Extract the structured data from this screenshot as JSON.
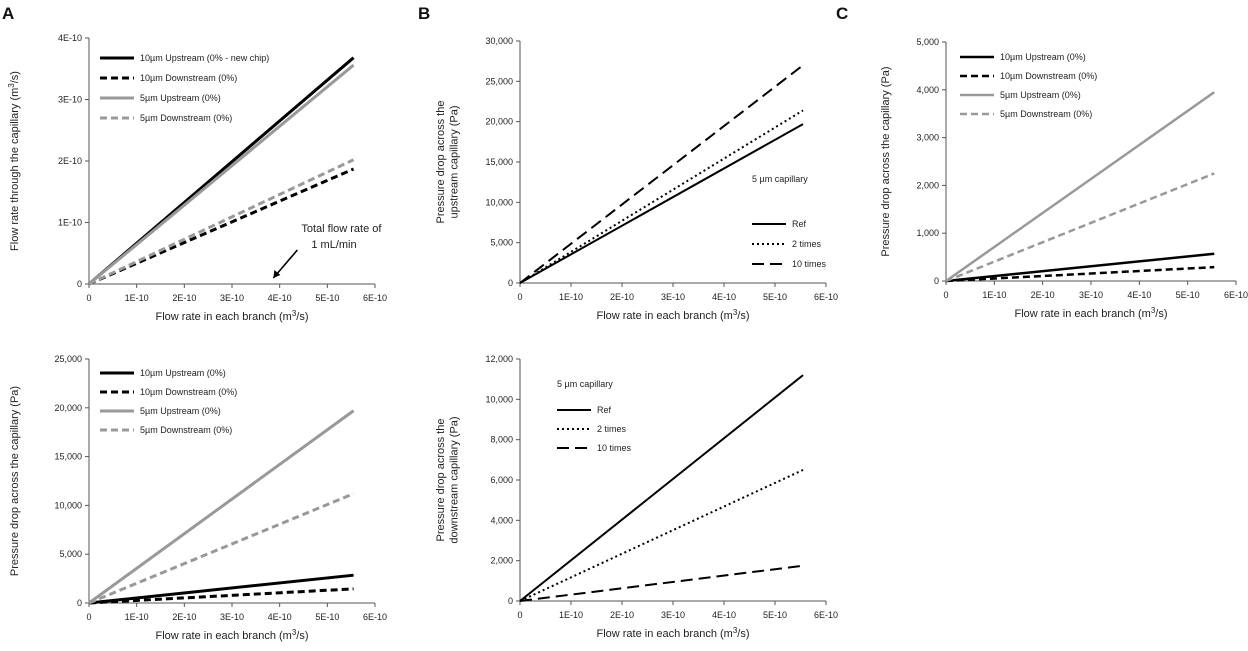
{
  "panel_labels": [
    "A",
    "B",
    "C"
  ],
  "colors": {
    "black": "#000000",
    "gray": "#999999",
    "axis": "#555555",
    "text": "#222222"
  },
  "chart_data": [
    {
      "id": "A-top",
      "type": "line",
      "panel": "A",
      "title": "",
      "xlabel": "Flow rate in each branch (m³/s)",
      "ylabel": "Flow rate through the capillary (m³/s)",
      "xlim": [
        0,
        6e-10
      ],
      "ylim": [
        0,
        4e-10
      ],
      "xticks": [
        0,
        1e-10,
        2e-10,
        3e-10,
        4e-10,
        5e-10,
        6e-10
      ],
      "xtick_labels": [
        "0",
        "1E-10",
        "2E-10",
        "3E-10",
        "4E-10",
        "5E-10",
        "6E-10"
      ],
      "yticks": [
        0,
        1e-10,
        2e-10,
        3e-10,
        4e-10
      ],
      "ytick_labels": [
        "0",
        "1E-10",
        "2E-10",
        "3E-10",
        "4E-10"
      ],
      "legend_position": "top-left",
      "series": [
        {
          "name": "10µm Upstream  (0% - new chip)",
          "style": "solid",
          "color": "#000000",
          "x": [
            0,
            5.55e-10
          ],
          "y": [
            0,
            3.68e-10
          ]
        },
        {
          "name": "10µm Downstream  (0%)",
          "style": "dashed",
          "color": "#000000",
          "x": [
            0,
            5.55e-10
          ],
          "y": [
            0,
            1.87e-10
          ]
        },
        {
          "name": "5µm Upstream  (0%)",
          "style": "solid",
          "color": "#999999",
          "x": [
            0,
            5.55e-10
          ],
          "y": [
            0,
            3.56e-10
          ]
        },
        {
          "name": "5µm Downstream  (0%)",
          "style": "dashed",
          "color": "#999999",
          "x": [
            0,
            5.55e-10
          ],
          "y": [
            0,
            2.02e-10
          ]
        }
      ],
      "annotations": [
        {
          "lines": [
            "Total flow rate of",
            "1 mL/min"
          ],
          "arrow_to": [
            3.7e-10,
            0
          ]
        }
      ]
    },
    {
      "id": "A-bottom",
      "type": "line",
      "panel": "A",
      "title": "",
      "xlabel": "Flow rate in each branch (m³/s)",
      "ylabel": "Pressure drop  across the capillary  (Pa)",
      "xlim": [
        0,
        6e-10
      ],
      "ylim": [
        0,
        25000
      ],
      "xticks": [
        0,
        1e-10,
        2e-10,
        3e-10,
        4e-10,
        5e-10,
        6e-10
      ],
      "xtick_labels": [
        "0",
        "1E-10",
        "2E-10",
        "3E-10",
        "4E-10",
        "5E-10",
        "6E-10"
      ],
      "yticks": [
        0,
        5000,
        10000,
        15000,
        20000,
        25000
      ],
      "ytick_labels": [
        "0",
        "5,000",
        "10,000",
        "15,000",
        "20,000",
        "25,000"
      ],
      "legend_position": "top-left",
      "series": [
        {
          "name": "10µm Upstream  (0%)",
          "style": "solid",
          "color": "#000000",
          "x": [
            0,
            5.55e-10
          ],
          "y": [
            0,
            2850
          ]
        },
        {
          "name": "10µm Downstream  (0%)",
          "style": "dashed",
          "color": "#000000",
          "x": [
            0,
            5.55e-10
          ],
          "y": [
            0,
            1450
          ]
        },
        {
          "name": "5µm Upstream  (0%)",
          "style": "solid",
          "color": "#999999",
          "x": [
            0,
            5.55e-10
          ],
          "y": [
            0,
            19700
          ]
        },
        {
          "name": "5µm Downstream  (0%)",
          "style": "dashed",
          "color": "#999999",
          "x": [
            0,
            5.55e-10
          ],
          "y": [
            0,
            11200
          ]
        }
      ],
      "annotations": []
    },
    {
      "id": "B-top",
      "type": "line",
      "panel": "B",
      "title": "",
      "xlabel": "Flow rate in each branch (m³/s)",
      "ylabel": "Pressure drop  across the upstream capillary (Pa)",
      "xlim": [
        0,
        6e-10
      ],
      "ylim": [
        0,
        30000
      ],
      "xticks": [
        0,
        1e-10,
        2e-10,
        3e-10,
        4e-10,
        5e-10,
        6e-10
      ],
      "xtick_labels": [
        "0",
        "1E-10",
        "2E-10",
        "3E-10",
        "4E-10",
        "5E-10",
        "6E-10"
      ],
      "yticks": [
        0,
        5000,
        10000,
        15000,
        20000,
        25000,
        30000
      ],
      "ytick_labels": [
        "0",
        "5,000",
        "10,000",
        "15,000",
        "20,000",
        "25,000",
        "30,000"
      ],
      "legend_title": "5 µm capillary",
      "legend_position": "center-right",
      "series": [
        {
          "name": "Ref",
          "style": "solid",
          "color": "#000000",
          "x": [
            0,
            5.55e-10
          ],
          "y": [
            0,
            19700
          ]
        },
        {
          "name": "2 times",
          "style": "dotted",
          "color": "#000000",
          "x": [
            0,
            5.55e-10
          ],
          "y": [
            0,
            21400
          ]
        },
        {
          "name": "10 times",
          "style": "longdash",
          "color": "#000000",
          "x": [
            0,
            5.55e-10
          ],
          "y": [
            0,
            27000
          ]
        }
      ],
      "annotations": []
    },
    {
      "id": "B-bottom",
      "type": "line",
      "panel": "B",
      "title": "",
      "xlabel": "Flow rate in each branch (m³/s)",
      "ylabel": "Pressure drop  across the downstream capillary  (Pa)",
      "xlim": [
        0,
        6e-10
      ],
      "ylim": [
        0,
        12000
      ],
      "xticks": [
        0,
        1e-10,
        2e-10,
        3e-10,
        4e-10,
        5e-10,
        6e-10
      ],
      "xtick_labels": [
        "0",
        "1E-10",
        "2E-10",
        "3E-10",
        "4E-10",
        "5E-10",
        "6E-10"
      ],
      "yticks": [
        0,
        2000,
        4000,
        6000,
        8000,
        10000,
        12000
      ],
      "ytick_labels": [
        "0",
        "2,000",
        "4,000",
        "6,000",
        "8,000",
        "10,000",
        "12,000"
      ],
      "legend_title": "5 µm capillary",
      "legend_position": "top-left",
      "series": [
        {
          "name": "Ref",
          "style": "solid",
          "color": "#000000",
          "x": [
            0,
            5.55e-10
          ],
          "y": [
            0,
            11200
          ]
        },
        {
          "name": "2 times",
          "style": "dotted",
          "color": "#000000",
          "x": [
            0,
            5.55e-10
          ],
          "y": [
            0,
            6500
          ]
        },
        {
          "name": "10 times",
          "style": "longdash",
          "color": "#000000",
          "x": [
            0,
            5.55e-10
          ],
          "y": [
            0,
            1750
          ]
        }
      ],
      "annotations": []
    },
    {
      "id": "C-top",
      "type": "line",
      "panel": "C",
      "title": "",
      "xlabel": "Flow rate in each branch (m³/s)",
      "ylabel": "Pressure drop  across the capillary  (Pa)",
      "xlim": [
        0,
        6e-10
      ],
      "ylim": [
        0,
        5000
      ],
      "xticks": [
        0,
        1e-10,
        2e-10,
        3e-10,
        4e-10,
        5e-10,
        6e-10
      ],
      "xtick_labels": [
        "0",
        "1E-10",
        "2E-10",
        "3E-10",
        "4E-10",
        "5E-10",
        "6E-10"
      ],
      "yticks": [
        0,
        1000,
        2000,
        3000,
        4000,
        5000
      ],
      "ytick_labels": [
        "0",
        "1,000",
        "2,000",
        "3,000",
        "4,000",
        "5,000"
      ],
      "legend_position": "top-left",
      "series": [
        {
          "name": "10µm Upstream  (0%)",
          "style": "solid",
          "color": "#000000",
          "x": [
            0,
            5.55e-10
          ],
          "y": [
            0,
            570
          ]
        },
        {
          "name": "10µm Downstream  (0%)",
          "style": "dashed",
          "color": "#000000",
          "x": [
            0,
            5.55e-10
          ],
          "y": [
            0,
            290
          ]
        },
        {
          "name": "5µm Upstream  (0%)",
          "style": "solid",
          "color": "#999999",
          "x": [
            0,
            5.55e-10
          ],
          "y": [
            0,
            3950
          ]
        },
        {
          "name": "5µm Downstream  (0%)",
          "style": "dashed",
          "color": "#999999",
          "x": [
            0,
            5.55e-10
          ],
          "y": [
            0,
            2250
          ]
        }
      ],
      "annotations": []
    }
  ]
}
